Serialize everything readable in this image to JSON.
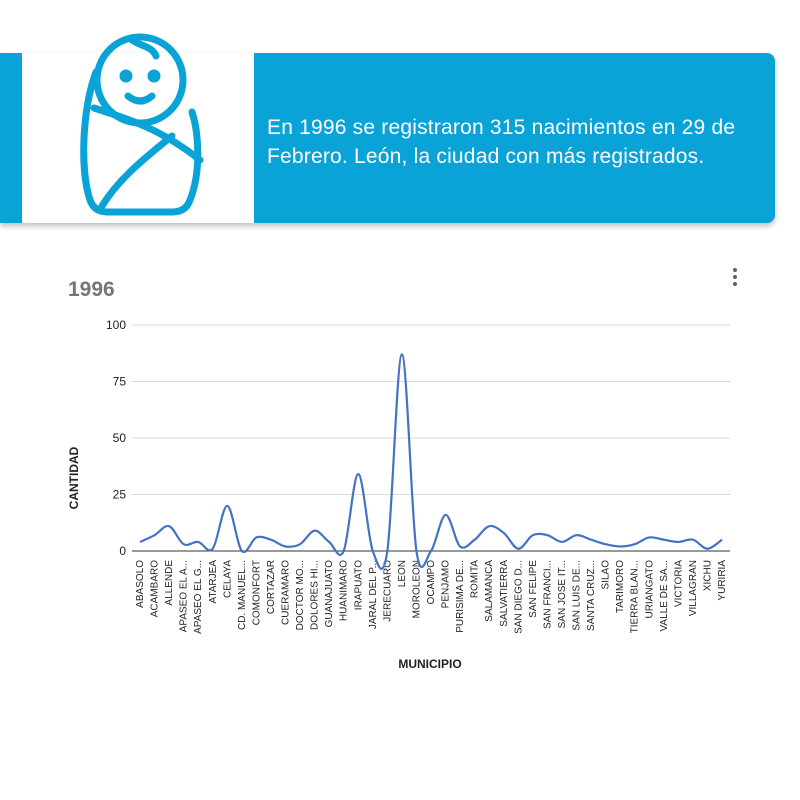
{
  "banner": {
    "text": "En 1996 se registraron 315 nacimientos en 29 de Febrero. León, la ciudad con más registrados.",
    "icon": "swaddled-baby-icon",
    "bg_color": "#0aa3d8"
  },
  "chart": {
    "title": "1996",
    "menu_icon": "more-vert-icon"
  },
  "chart_data": {
    "type": "line",
    "title": "1996",
    "xlabel": "MUNICIPIO",
    "ylabel": "CANTIDAD",
    "ylim": [
      0,
      100
    ],
    "yticks": [
      0,
      25,
      50,
      75,
      100
    ],
    "grid": true,
    "legend": "none",
    "line_color": "#4472c4",
    "categories": [
      "ABASOLO",
      "ACAMBARO",
      "ALLENDE",
      "APASEO EL A...",
      "APASEO EL G...",
      "ATARJEA",
      "CELAYA",
      "CD. MANUEL...",
      "COMONFORT",
      "CORTAZAR",
      "CUERAMARO",
      "DOCTOR MO...",
      "DOLORES HI...",
      "GUANAJUATO",
      "HUANIMARO",
      "IRAPUATO",
      "JARAL DEL P...",
      "JERECUARO",
      "LEON",
      "MOROLEON",
      "OCAMPO",
      "PENJAMO",
      "PURISIMA DE...",
      "ROMITA",
      "SALAMANCA",
      "SALVATIERRA",
      "SAN DIEGO D...",
      "SAN FELIPE",
      "SAN FRANCI...",
      "SAN JOSE IT...",
      "SAN LUIS DE...",
      "SANTA CRUZ...",
      "SILAO",
      "TARIMORO",
      "TIERRA BLAN...",
      "URIANGATO",
      "VALLE DE SA...",
      "VICTORIA",
      "VILLAGRAN",
      "XICHU",
      "YURIRIA"
    ],
    "values": [
      4,
      7,
      11,
      3,
      4,
      1,
      20,
      0,
      6,
      5,
      2,
      3,
      9,
      4,
      0,
      34,
      0,
      0,
      87,
      0,
      0,
      16,
      2,
      5,
      11,
      8,
      1,
      7,
      7,
      4,
      7,
      5,
      3,
      2,
      3,
      6,
      5,
      4,
      5,
      1,
      5
    ]
  }
}
